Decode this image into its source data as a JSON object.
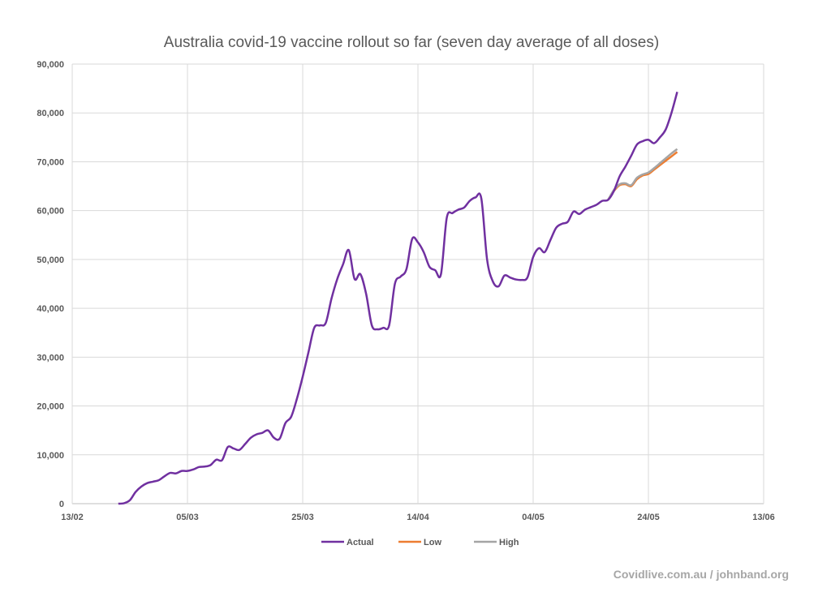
{
  "chart_data": {
    "type": "line",
    "title": "Australia covid-19 vaccine rollout so far (seven day average of all doses)",
    "xlabel": "",
    "ylabel": "",
    "ylim": [
      0,
      90000
    ],
    "xlim": [
      "13/02",
      "13/06"
    ],
    "y_ticks": [
      "0",
      "10,000",
      "20,000",
      "30,000",
      "40,000",
      "50,000",
      "60,000",
      "70,000",
      "80,000",
      "90,000"
    ],
    "y_tick_values": [
      0,
      10000,
      20000,
      30000,
      40000,
      50000,
      60000,
      70000,
      80000,
      90000
    ],
    "x_ticks": [
      "13/02",
      "05/03",
      "25/03",
      "14/04",
      "04/05",
      "24/05",
      "13/06"
    ],
    "grid": true,
    "legend_position": "bottom",
    "series": [
      {
        "name": "Actual",
        "color": "#7030a0",
        "x": [
          "21/02",
          "22/02",
          "23/02",
          "24/02",
          "25/02",
          "26/02",
          "27/02",
          "28/02",
          "01/03",
          "02/03",
          "03/03",
          "04/03",
          "05/03",
          "06/03",
          "07/03",
          "08/03",
          "09/03",
          "10/03",
          "11/03",
          "12/03",
          "13/03",
          "14/03",
          "15/03",
          "16/03",
          "17/03",
          "18/03",
          "19/03",
          "20/03",
          "21/03",
          "22/03",
          "23/03",
          "24/03",
          "25/03",
          "26/03",
          "27/03",
          "28/03",
          "29/03",
          "30/03",
          "31/03",
          "01/04",
          "02/04",
          "03/04",
          "04/04",
          "05/04",
          "06/04",
          "07/04",
          "08/04",
          "09/04",
          "10/04",
          "11/04",
          "12/04",
          "13/04",
          "14/04",
          "15/04",
          "16/04",
          "17/04",
          "18/04",
          "19/04",
          "20/04",
          "21/04",
          "22/04",
          "23/04",
          "24/04",
          "25/04",
          "26/04",
          "27/04",
          "28/04",
          "29/04",
          "30/04",
          "01/05",
          "02/05",
          "03/05",
          "04/05",
          "05/05",
          "06/05",
          "07/05",
          "08/05",
          "09/05",
          "10/05",
          "11/05",
          "12/05",
          "13/05",
          "14/05",
          "15/05",
          "16/05",
          "17/05",
          "18/05",
          "19/05",
          "20/05",
          "21/05",
          "22/05",
          "23/05",
          "24/05",
          "25/05",
          "26/05",
          "27/05",
          "28/05",
          "29/05"
        ],
        "values": [
          0,
          100,
          700,
          2400,
          3500,
          4200,
          4500,
          4800,
          5600,
          6300,
          6200,
          6700,
          6700,
          7000,
          7500,
          7600,
          7900,
          9000,
          8900,
          11600,
          11300,
          11000,
          12200,
          13500,
          14200,
          14500,
          15000,
          13500,
          13300,
          16500,
          17800,
          21500,
          26000,
          31000,
          36000,
          36500,
          37000,
          42000,
          46000,
          49000,
          51900,
          46000,
          47000,
          43000,
          36500,
          35700,
          36000,
          36500,
          45000,
          46500,
          48000,
          54200,
          53500,
          51500,
          48500,
          47800,
          47000,
          58500,
          59500,
          60200,
          60600,
          62000,
          62700,
          62500,
          50000,
          45500,
          44500,
          46700,
          46300,
          45900,
          45800,
          46300,
          50500,
          52300,
          51500,
          54000,
          56500,
          57300,
          57700,
          59800,
          59300,
          60200,
          60700,
          61200,
          62000,
          62200,
          64000,
          67000,
          69000,
          71200,
          73500,
          74200,
          74500,
          73800,
          75000,
          76600,
          80000,
          84300
        ]
      },
      {
        "name": "Low",
        "color": "#ed7d31",
        "x": [
          "17/05",
          "18/05",
          "19/05",
          "20/05",
          "21/05",
          "22/05",
          "23/05",
          "24/05",
          "25/05",
          "26/05",
          "27/05",
          "28/05",
          "29/05"
        ],
        "values": [
          62200,
          64000,
          65200,
          65400,
          65000,
          66400,
          67200,
          67500,
          68400,
          69300,
          70200,
          71100,
          72000
        ]
      },
      {
        "name": "High",
        "color": "#a5a5a5",
        "x": [
          "17/05",
          "18/05",
          "19/05",
          "20/05",
          "21/05",
          "22/05",
          "23/05",
          "24/05",
          "25/05",
          "26/05",
          "27/05",
          "28/05",
          "29/05"
        ],
        "values": [
          62200,
          64200,
          65400,
          65600,
          65200,
          66700,
          67400,
          67800,
          68700,
          69700,
          70700,
          71700,
          72600
        ]
      }
    ]
  },
  "source": "Covidlive.com.au / johnband.org"
}
